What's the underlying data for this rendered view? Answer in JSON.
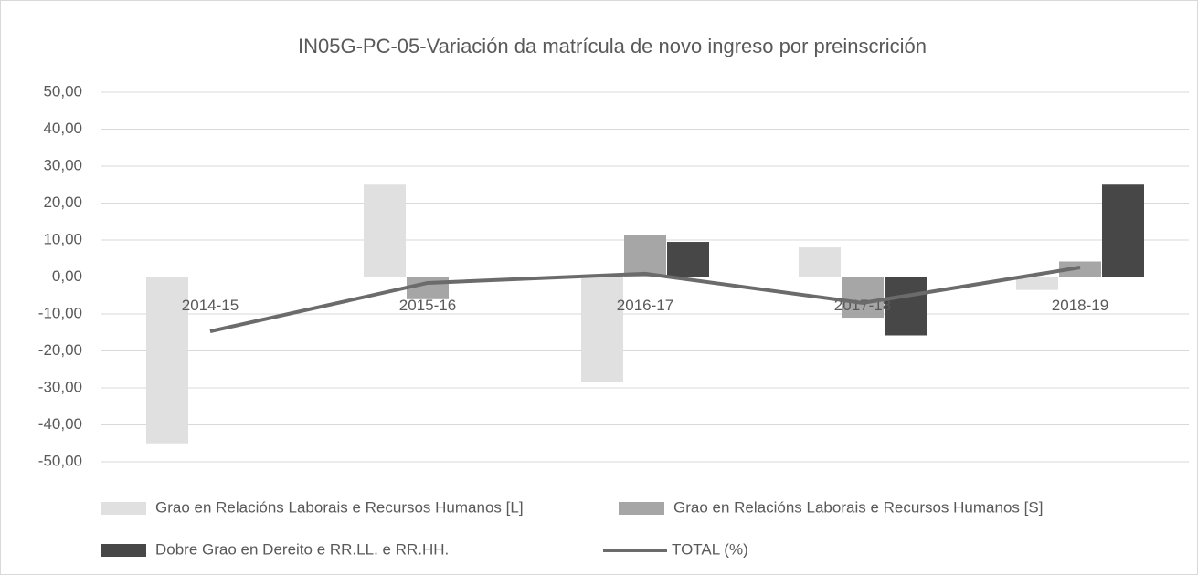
{
  "chart_data": {
    "type": "bar_line",
    "title": "IN05G-PC-05-Variación da matrícula de novo ingreso por preinscrición",
    "categories": [
      "2014-15",
      "2015-16",
      "2016-17",
      "2017-18",
      "2018-19"
    ],
    "series": [
      {
        "name": "Grao en Relacións Laborais e Recursos Humanos [L]",
        "color": "#e0e0e0",
        "kind": "bar",
        "values": [
          -45,
          25,
          -28.5,
          8,
          -3.5
        ]
      },
      {
        "name": "Grao en Relacións Laborais e Recursos Humanos [S]",
        "color": "#a6a6a6",
        "kind": "bar",
        "values": [
          null,
          -6,
          11.3,
          -11,
          4.2
        ]
      },
      {
        "name": "Dobre Grao en Dereito e RR.LL. e RR.HH.",
        "color": "#474747",
        "kind": "bar",
        "values": [
          null,
          null,
          9.5,
          -15.8,
          25
        ]
      },
      {
        "name": "TOTAL (%)",
        "color": "#6b6b6b",
        "kind": "line",
        "values": [
          -14.7,
          -1.6,
          0.9,
          -7,
          2.6
        ]
      }
    ],
    "ylim": [
      -50,
      50
    ],
    "yticks": [
      {
        "value": -50,
        "label": "-50,00"
      },
      {
        "value": -40,
        "label": "-40,00"
      },
      {
        "value": -30,
        "label": "-30,00"
      },
      {
        "value": -20,
        "label": "-20,00"
      },
      {
        "value": -10,
        "label": "-10,00"
      },
      {
        "value": 0,
        "label": "0,00"
      },
      {
        "value": 10,
        "label": "10,00"
      },
      {
        "value": 20,
        "label": "20,00"
      },
      {
        "value": 30,
        "label": "30,00"
      },
      {
        "value": 40,
        "label": "40,00"
      },
      {
        "value": 50,
        "label": "50,00"
      }
    ],
    "grid": true
  }
}
